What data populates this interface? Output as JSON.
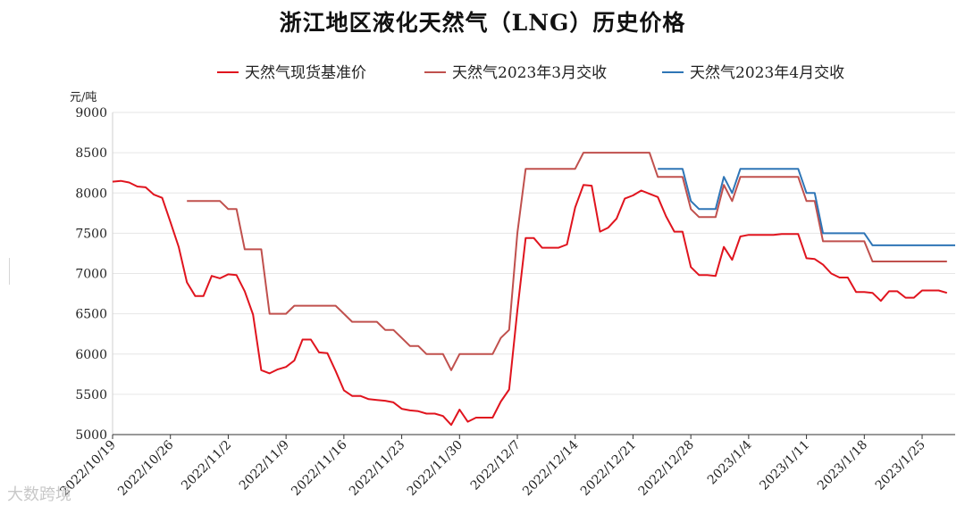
{
  "chart_data": {
    "type": "line",
    "title": "浙江地区液化天然气（LNG）历史价格",
    "ylabel": "元/吨",
    "xlabel": "",
    "ylim": [
      5000,
      9000
    ],
    "yticks": [
      5000,
      5500,
      6000,
      6500,
      7000,
      7500,
      8000,
      8500,
      9000
    ],
    "xlim": [
      "2022-10-19",
      "2023-01-29"
    ],
    "xticks": [
      "2022/10/19",
      "2022/10/26",
      "2022/11/2",
      "2022/11/9",
      "2022/11/16",
      "2022/11/23",
      "2022/11/30",
      "2022/12/7",
      "2022/12/14",
      "2022/12/21",
      "2022/12/28",
      "2023/1/4",
      "2023/1/11",
      "2023/1/18",
      "2023/1/25"
    ],
    "grid": "horizontal",
    "legend_position": "top",
    "series": [
      {
        "name": "天然气现货基准价",
        "color": "#e0141e",
        "points": [
          [
            "2022-10-19",
            8140
          ],
          [
            "2022-10-20",
            8150
          ],
          [
            "2022-10-21",
            8130
          ],
          [
            "2022-10-22",
            8080
          ],
          [
            "2022-10-23",
            8070
          ],
          [
            "2022-10-24",
            7980
          ],
          [
            "2022-10-25",
            7940
          ],
          [
            "2022-10-26",
            7640
          ],
          [
            "2022-10-27",
            7330
          ],
          [
            "2022-10-28",
            6890
          ],
          [
            "2022-10-29",
            6720
          ],
          [
            "2022-10-30",
            6720
          ],
          [
            "2022-10-31",
            6970
          ],
          [
            "2022-11-01",
            6940
          ],
          [
            "2022-11-02",
            6990
          ],
          [
            "2022-11-03",
            6980
          ],
          [
            "2022-11-04",
            6780
          ],
          [
            "2022-11-05",
            6490
          ],
          [
            "2022-11-06",
            5800
          ],
          [
            "2022-11-07",
            5760
          ],
          [
            "2022-11-08",
            5810
          ],
          [
            "2022-11-09",
            5840
          ],
          [
            "2022-11-10",
            5920
          ],
          [
            "2022-11-11",
            6180
          ],
          [
            "2022-11-12",
            6180
          ],
          [
            "2022-11-13",
            6020
          ],
          [
            "2022-11-14",
            6010
          ],
          [
            "2022-11-15",
            5790
          ],
          [
            "2022-11-16",
            5550
          ],
          [
            "2022-11-17",
            5480
          ],
          [
            "2022-11-18",
            5480
          ],
          [
            "2022-11-19",
            5440
          ],
          [
            "2022-11-20",
            5430
          ],
          [
            "2022-11-21",
            5420
          ],
          [
            "2022-11-22",
            5400
          ],
          [
            "2022-11-23",
            5320
          ],
          [
            "2022-11-24",
            5300
          ],
          [
            "2022-11-25",
            5290
          ],
          [
            "2022-11-26",
            5260
          ],
          [
            "2022-11-27",
            5260
          ],
          [
            "2022-11-28",
            5230
          ],
          [
            "2022-11-29",
            5120
          ],
          [
            "2022-11-30",
            5310
          ],
          [
            "2022-12-01",
            5160
          ],
          [
            "2022-12-02",
            5210
          ],
          [
            "2022-12-03",
            5210
          ],
          [
            "2022-12-04",
            5210
          ],
          [
            "2022-12-05",
            5410
          ],
          [
            "2022-12-06",
            5560
          ],
          [
            "2022-12-07",
            6540
          ],
          [
            "2022-12-08",
            7440
          ],
          [
            "2022-12-09",
            7440
          ],
          [
            "2022-12-10",
            7320
          ],
          [
            "2022-12-11",
            7320
          ],
          [
            "2022-12-12",
            7320
          ],
          [
            "2022-12-13",
            7360
          ],
          [
            "2022-12-14",
            7820
          ],
          [
            "2022-12-15",
            8100
          ],
          [
            "2022-12-16",
            8090
          ],
          [
            "2022-12-17",
            7520
          ],
          [
            "2022-12-18",
            7570
          ],
          [
            "2022-12-19",
            7680
          ],
          [
            "2022-12-20",
            7930
          ],
          [
            "2022-12-21",
            7970
          ],
          [
            "2022-12-22",
            8030
          ],
          [
            "2022-12-23",
            7990
          ],
          [
            "2022-12-24",
            7950
          ],
          [
            "2022-12-25",
            7710
          ],
          [
            "2022-12-26",
            7520
          ],
          [
            "2022-12-27",
            7520
          ],
          [
            "2022-12-28",
            7080
          ],
          [
            "2022-12-29",
            6980
          ],
          [
            "2022-12-30",
            6980
          ],
          [
            "2022-12-31",
            6970
          ],
          [
            "2023-01-01",
            7330
          ],
          [
            "2023-01-02",
            7170
          ],
          [
            "2023-01-03",
            7460
          ],
          [
            "2023-01-04",
            7480
          ],
          [
            "2023-01-05",
            7480
          ],
          [
            "2023-01-06",
            7480
          ],
          [
            "2023-01-07",
            7480
          ],
          [
            "2023-01-08",
            7490
          ],
          [
            "2023-01-09",
            7490
          ],
          [
            "2023-01-10",
            7490
          ],
          [
            "2023-01-11",
            7190
          ],
          [
            "2023-01-12",
            7180
          ],
          [
            "2023-01-13",
            7110
          ],
          [
            "2023-01-14",
            7000
          ],
          [
            "2023-01-15",
            6950
          ],
          [
            "2023-01-16",
            6950
          ],
          [
            "2023-01-17",
            6770
          ],
          [
            "2023-01-18",
            6770
          ],
          [
            "2023-01-19",
            6760
          ],
          [
            "2023-01-20",
            6660
          ],
          [
            "2023-01-21",
            6780
          ],
          [
            "2023-01-22",
            6780
          ],
          [
            "2023-01-23",
            6700
          ],
          [
            "2023-01-24",
            6700
          ],
          [
            "2023-01-25",
            6790
          ],
          [
            "2023-01-26",
            6790
          ],
          [
            "2023-01-27",
            6790
          ],
          [
            "2023-01-28",
            6760
          ]
        ]
      },
      {
        "name": "天然气2023年3月交收",
        "color": "#c0504d",
        "points": [
          [
            "2022-10-28",
            7900
          ],
          [
            "2022-10-29",
            7900
          ],
          [
            "2022-10-30",
            7900
          ],
          [
            "2022-10-31",
            7900
          ],
          [
            "2022-11-01",
            7900
          ],
          [
            "2022-11-02",
            7800
          ],
          [
            "2022-11-03",
            7800
          ],
          [
            "2022-11-04",
            7300
          ],
          [
            "2022-11-05",
            7300
          ],
          [
            "2022-11-06",
            7300
          ],
          [
            "2022-11-07",
            6500
          ],
          [
            "2022-11-08",
            6500
          ],
          [
            "2022-11-09",
            6500
          ],
          [
            "2022-11-10",
            6600
          ],
          [
            "2022-11-11",
            6600
          ],
          [
            "2022-11-12",
            6600
          ],
          [
            "2022-11-13",
            6600
          ],
          [
            "2022-11-14",
            6600
          ],
          [
            "2022-11-15",
            6600
          ],
          [
            "2022-11-16",
            6500
          ],
          [
            "2022-11-17",
            6400
          ],
          [
            "2022-11-18",
            6400
          ],
          [
            "2022-11-19",
            6400
          ],
          [
            "2022-11-20",
            6400
          ],
          [
            "2022-11-21",
            6300
          ],
          [
            "2022-11-22",
            6300
          ],
          [
            "2022-11-23",
            6200
          ],
          [
            "2022-11-24",
            6100
          ],
          [
            "2022-11-25",
            6100
          ],
          [
            "2022-11-26",
            6000
          ],
          [
            "2022-11-27",
            6000
          ],
          [
            "2022-11-28",
            6000
          ],
          [
            "2022-11-29",
            5800
          ],
          [
            "2022-11-30",
            6000
          ],
          [
            "2022-12-01",
            6000
          ],
          [
            "2022-12-02",
            6000
          ],
          [
            "2022-12-03",
            6000
          ],
          [
            "2022-12-04",
            6000
          ],
          [
            "2022-12-05",
            6200
          ],
          [
            "2022-12-06",
            6300
          ],
          [
            "2022-12-07",
            7500
          ],
          [
            "2022-12-08",
            8300
          ],
          [
            "2022-12-09",
            8300
          ],
          [
            "2022-12-10",
            8300
          ],
          [
            "2022-12-11",
            8300
          ],
          [
            "2022-12-12",
            8300
          ],
          [
            "2022-12-13",
            8300
          ],
          [
            "2022-12-14",
            8300
          ],
          [
            "2022-12-15",
            8500
          ],
          [
            "2022-12-16",
            8500
          ],
          [
            "2022-12-17",
            8500
          ],
          [
            "2022-12-18",
            8500
          ],
          [
            "2022-12-19",
            8500
          ],
          [
            "2022-12-20",
            8500
          ],
          [
            "2022-12-21",
            8500
          ],
          [
            "2022-12-22",
            8500
          ],
          [
            "2022-12-23",
            8500
          ],
          [
            "2022-12-24",
            8200
          ],
          [
            "2022-12-25",
            8200
          ],
          [
            "2022-12-26",
            8200
          ],
          [
            "2022-12-27",
            8200
          ],
          [
            "2022-12-28",
            7800
          ],
          [
            "2022-12-29",
            7700
          ],
          [
            "2022-12-30",
            7700
          ],
          [
            "2022-12-31",
            7700
          ],
          [
            "2023-01-01",
            8100
          ],
          [
            "2023-01-02",
            7900
          ],
          [
            "2023-01-03",
            8200
          ],
          [
            "2023-01-04",
            8200
          ],
          [
            "2023-01-05",
            8200
          ],
          [
            "2023-01-06",
            8200
          ],
          [
            "2023-01-07",
            8200
          ],
          [
            "2023-01-08",
            8200
          ],
          [
            "2023-01-09",
            8200
          ],
          [
            "2023-01-10",
            8200
          ],
          [
            "2023-01-11",
            7900
          ],
          [
            "2023-01-12",
            7900
          ],
          [
            "2023-01-13",
            7400
          ],
          [
            "2023-01-14",
            7400
          ],
          [
            "2023-01-15",
            7400
          ],
          [
            "2023-01-16",
            7400
          ],
          [
            "2023-01-17",
            7400
          ],
          [
            "2023-01-18",
            7400
          ],
          [
            "2023-01-19",
            7150
          ],
          [
            "2023-01-20",
            7150
          ],
          [
            "2023-01-21",
            7150
          ],
          [
            "2023-01-22",
            7150
          ],
          [
            "2023-01-23",
            7150
          ],
          [
            "2023-01-24",
            7150
          ],
          [
            "2023-01-25",
            7150
          ],
          [
            "2023-01-26",
            7150
          ],
          [
            "2023-01-27",
            7150
          ],
          [
            "2023-01-28",
            7150
          ]
        ]
      },
      {
        "name": "天然气2023年4月交收",
        "color": "#2e75b6",
        "points": [
          [
            "2022-12-24",
            8300
          ],
          [
            "2022-12-25",
            8300
          ],
          [
            "2022-12-26",
            8300
          ],
          [
            "2022-12-27",
            8300
          ],
          [
            "2022-12-28",
            7900
          ],
          [
            "2022-12-29",
            7800
          ],
          [
            "2022-12-30",
            7800
          ],
          [
            "2022-12-31",
            7800
          ],
          [
            "2023-01-01",
            8200
          ],
          [
            "2023-01-02",
            8000
          ],
          [
            "2023-01-03",
            8300
          ],
          [
            "2023-01-04",
            8300
          ],
          [
            "2023-01-05",
            8300
          ],
          [
            "2023-01-06",
            8300
          ],
          [
            "2023-01-07",
            8300
          ],
          [
            "2023-01-08",
            8300
          ],
          [
            "2023-01-09",
            8300
          ],
          [
            "2023-01-10",
            8300
          ],
          [
            "2023-01-11",
            8000
          ],
          [
            "2023-01-12",
            8000
          ],
          [
            "2023-01-13",
            7500
          ],
          [
            "2023-01-14",
            7500
          ],
          [
            "2023-01-15",
            7500
          ],
          [
            "2023-01-16",
            7500
          ],
          [
            "2023-01-17",
            7500
          ],
          [
            "2023-01-18",
            7500
          ],
          [
            "2023-01-19",
            7350
          ],
          [
            "2023-01-20",
            7350
          ],
          [
            "2023-01-21",
            7350
          ],
          [
            "2023-01-22",
            7350
          ],
          [
            "2023-01-23",
            7350
          ],
          [
            "2023-01-24",
            7350
          ],
          [
            "2023-01-25",
            7350
          ],
          [
            "2023-01-26",
            7350
          ],
          [
            "2023-01-27",
            7350
          ],
          [
            "2023-01-28",
            7350
          ],
          [
            "2023-01-29",
            7350
          ]
        ]
      }
    ]
  },
  "watermark": "大数跨境"
}
